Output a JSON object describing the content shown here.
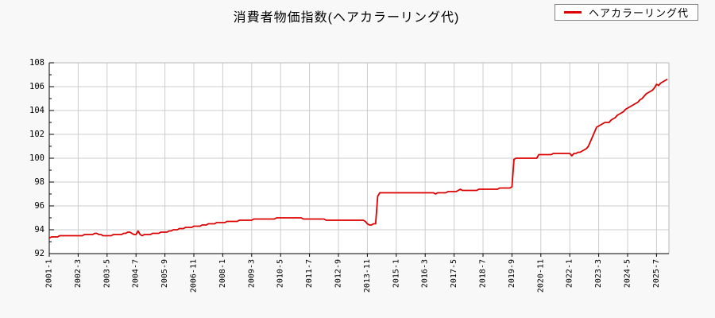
{
  "header": {
    "title": "消費者物価指数(ヘアカラーリング代)"
  },
  "legend": {
    "label": "ヘアカラーリング代",
    "line_color": "#dd0000"
  },
  "chart_data": {
    "type": "line",
    "title": "消費者物価指数(ヘアカラーリング代)",
    "xlabel": "",
    "ylabel": "",
    "ylim": [
      92,
      108
    ],
    "y_tick_step": 2,
    "y_minor_tick_step": 1,
    "grid": true,
    "legend_position": "top-right",
    "x_start": "2001-1",
    "x_step_months": 1,
    "x_tick_interval_months": 14,
    "x_tick_labels": [
      "2001-1",
      "2002-3",
      "2003-5",
      "2004-7",
      "2005-9",
      "2006-11",
      "2008-1",
      "2009-3",
      "2010-5",
      "2011-7",
      "2012-9",
      "2013-11",
      "2015-1",
      "2016-3",
      "2017-5",
      "2018-7",
      "2019-9",
      "2020-11",
      "2022-1",
      "2023-3",
      "2024-5",
      "2025-7"
    ],
    "colors": {
      "line": "#dd0000",
      "grid": "#cccccc",
      "axis": "#000000",
      "frame": "#b8b8b8",
      "plot_bg": "#ffffff",
      "page_bg": "#f8f8f8"
    },
    "series": [
      {
        "name": "ヘアカラーリング代",
        "color": "#dd0000",
        "values": [
          93.3,
          93.4,
          93.4,
          93.4,
          93.4,
          93.5,
          93.5,
          93.5,
          93.5,
          93.5,
          93.5,
          93.5,
          93.5,
          93.5,
          93.5,
          93.5,
          93.5,
          93.6,
          93.6,
          93.6,
          93.6,
          93.6,
          93.7,
          93.7,
          93.6,
          93.6,
          93.5,
          93.5,
          93.5,
          93.5,
          93.5,
          93.6,
          93.6,
          93.6,
          93.6,
          93.6,
          93.7,
          93.7,
          93.8,
          93.8,
          93.7,
          93.6,
          93.6,
          93.9,
          93.6,
          93.5,
          93.6,
          93.6,
          93.6,
          93.6,
          93.7,
          93.7,
          93.7,
          93.7,
          93.8,
          93.8,
          93.8,
          93.8,
          93.9,
          93.9,
          94.0,
          94.0,
          94.0,
          94.1,
          94.1,
          94.1,
          94.2,
          94.2,
          94.2,
          94.2,
          94.3,
          94.3,
          94.3,
          94.3,
          94.4,
          94.4,
          94.4,
          94.5,
          94.5,
          94.5,
          94.5,
          94.6,
          94.6,
          94.6,
          94.6,
          94.6,
          94.7,
          94.7,
          94.7,
          94.7,
          94.7,
          94.7,
          94.8,
          94.8,
          94.8,
          94.8,
          94.8,
          94.8,
          94.8,
          94.9,
          94.9,
          94.9,
          94.9,
          94.9,
          94.9,
          94.9,
          94.9,
          94.9,
          94.9,
          94.9,
          95.0,
          95.0,
          95.0,
          95.0,
          95.0,
          95.0,
          95.0,
          95.0,
          95.0,
          95.0,
          95.0,
          95.0,
          95.0,
          94.9,
          94.9,
          94.9,
          94.9,
          94.9,
          94.9,
          94.9,
          94.9,
          94.9,
          94.9,
          94.9,
          94.8,
          94.8,
          94.8,
          94.8,
          94.8,
          94.8,
          94.8,
          94.8,
          94.8,
          94.8,
          94.8,
          94.8,
          94.8,
          94.8,
          94.8,
          94.8,
          94.8,
          94.8,
          94.8,
          94.7,
          94.5,
          94.4,
          94.4,
          94.5,
          94.5,
          96.8,
          97.1,
          97.1,
          97.1,
          97.1,
          97.1,
          97.1,
          97.1,
          97.1,
          97.1,
          97.1,
          97.1,
          97.1,
          97.1,
          97.1,
          97.1,
          97.1,
          97.1,
          97.1,
          97.1,
          97.1,
          97.1,
          97.1,
          97.1,
          97.1,
          97.1,
          97.1,
          97.1,
          97.0,
          97.1,
          97.1,
          97.1,
          97.1,
          97.1,
          97.2,
          97.2,
          97.2,
          97.2,
          97.2,
          97.3,
          97.4,
          97.3,
          97.3,
          97.3,
          97.3,
          97.3,
          97.3,
          97.3,
          97.3,
          97.4,
          97.4,
          97.4,
          97.4,
          97.4,
          97.4,
          97.4,
          97.4,
          97.4,
          97.4,
          97.5,
          97.5,
          97.5,
          97.5,
          97.5,
          97.5,
          97.6,
          99.9,
          100.0,
          100.0,
          100.0,
          100.0,
          100.0,
          100.0,
          100.0,
          100.0,
          100.0,
          100.0,
          100.0,
          100.3,
          100.3,
          100.3,
          100.3,
          100.3,
          100.3,
          100.3,
          100.4,
          100.4,
          100.4,
          100.4,
          100.4,
          100.4,
          100.4,
          100.4,
          100.4,
          100.2,
          100.4,
          100.4,
          100.5,
          100.5,
          100.6,
          100.7,
          100.8,
          101.0,
          101.4,
          101.8,
          102.2,
          102.6,
          102.7,
          102.8,
          102.9,
          103.0,
          103.0,
          103.0,
          103.2,
          103.3,
          103.4,
          103.6,
          103.7,
          103.8,
          103.9,
          104.1,
          104.2,
          104.3,
          104.4,
          104.5,
          104.6,
          104.7,
          104.9,
          105.0,
          105.2,
          105.4,
          105.5,
          105.6,
          105.7,
          105.9,
          106.2,
          106.1,
          106.3,
          106.4,
          106.5,
          106.6
        ]
      }
    ]
  }
}
